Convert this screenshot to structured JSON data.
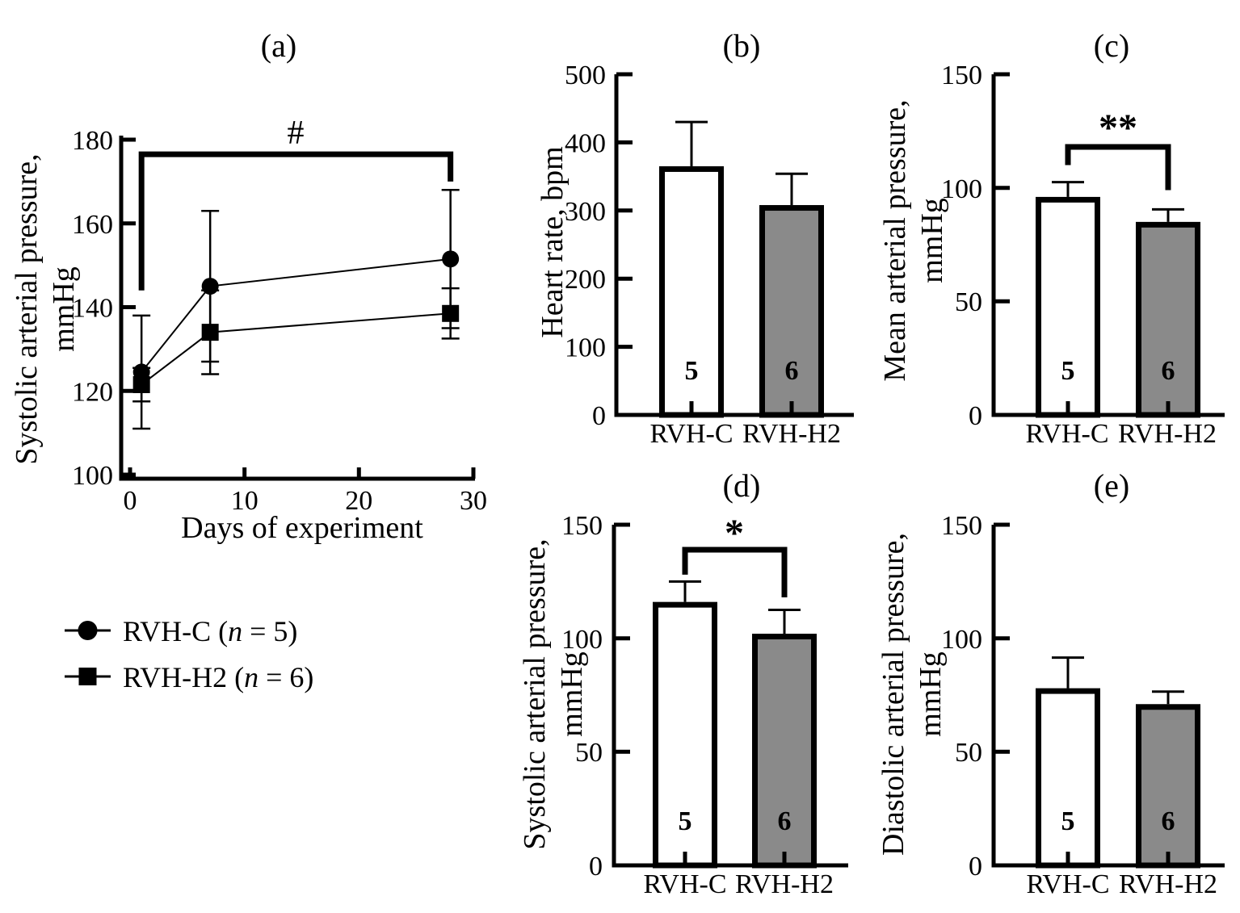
{
  "figure": {
    "background": "#ffffff",
    "panel_titles": [
      "(a)",
      "(b)",
      "(c)",
      "(d)",
      "(e)"
    ]
  },
  "colors": {
    "ink": "#000000",
    "gray_fill": "#8a8a8a",
    "white_fill": "#ffffff"
  },
  "legend": {
    "items": [
      {
        "marker": "circle-icon",
        "pre": "RVH-C (",
        "n": "n",
        "post": " = 5)"
      },
      {
        "marker": "square-icon",
        "pre": "RVH-H2 (",
        "n": "n",
        "post": " = 6)"
      }
    ]
  },
  "chart_data": [
    {
      "id": "a",
      "type": "line",
      "title": "(a)",
      "xlabel": "Days of experiment",
      "ylabel_lines": [
        "Systolic arterial pressure,",
        "mmHg"
      ],
      "xlim": [
        0,
        30
      ],
      "xticks": [
        0,
        10,
        20,
        30
      ],
      "ylim": [
        100,
        180
      ],
      "yticks": [
        100,
        120,
        140,
        160,
        180
      ],
      "grid": false,
      "legend_position": "below-left",
      "series": [
        {
          "name": "RVH-C",
          "n": 5,
          "marker": "circle",
          "x": [
            1,
            7,
            28
          ],
          "y": [
            124.5,
            145,
            151.5
          ],
          "err": [
            13.5,
            18,
            16.5
          ]
        },
        {
          "name": "RVH-H2",
          "n": 6,
          "marker": "square",
          "x": [
            1,
            7,
            28
          ],
          "y": [
            121.5,
            134,
            138.5
          ],
          "err": [
            4,
            10,
            6
          ]
        }
      ],
      "significance": {
        "symbol": "#",
        "from_day": 1,
        "to_day": 28,
        "bar_value": 176.5,
        "left_drop_to": 144,
        "right_drop_to": 170
      }
    },
    {
      "id": "b",
      "type": "bar",
      "title": "(b)",
      "ylabel_lines": [
        "Heart rate, bpm"
      ],
      "ylim": [
        0,
        500
      ],
      "yticks": [
        0,
        100,
        200,
        300,
        400,
        500
      ],
      "categories": [
        "RVH-C",
        "RVH-H2"
      ],
      "values": [
        365,
        308
      ],
      "errors": [
        65,
        46
      ],
      "bar_n": [
        "5",
        "6"
      ],
      "fills": [
        "#ffffff",
        "#8a8a8a"
      ]
    },
    {
      "id": "c",
      "type": "bar",
      "title": "(c)",
      "ylabel_lines": [
        "Mean arterial pressure,",
        "mmHg"
      ],
      "ylim": [
        0,
        150
      ],
      "yticks": [
        0,
        50,
        100,
        150
      ],
      "categories": [
        "RVH-C",
        "RVH-H2"
      ],
      "values": [
        96,
        85
      ],
      "errors": [
        6.5,
        5.5
      ],
      "bar_n": [
        "5",
        "6"
      ],
      "fills": [
        "#ffffff",
        "#8a8a8a"
      ],
      "significance": {
        "symbol": "**",
        "bar_value": 118,
        "left_drop_to": 110,
        "right_drop_to": 99
      }
    },
    {
      "id": "d",
      "type": "bar",
      "title": "(d)",
      "ylabel_lines": [
        "Systolic arterial pressure,",
        "mmHg"
      ],
      "ylim": [
        0,
        150
      ],
      "yticks": [
        0,
        50,
        100,
        150
      ],
      "categories": [
        "RVH-C",
        "RVH-H2"
      ],
      "values": [
        116,
        102
      ],
      "errors": [
        9,
        10.5
      ],
      "bar_n": [
        "5",
        "6"
      ],
      "fills": [
        "#ffffff",
        "#8a8a8a"
      ],
      "significance": {
        "symbol": "*",
        "bar_value": 139,
        "left_drop_to": 128,
        "right_drop_to": 118
      }
    },
    {
      "id": "e",
      "type": "bar",
      "title": "(e)",
      "ylabel_lines": [
        "Diastolic arterial pressure,",
        "mmHg"
      ],
      "ylim": [
        0,
        150
      ],
      "yticks": [
        0,
        50,
        100,
        150
      ],
      "categories": [
        "RVH-C",
        "RVH-H2"
      ],
      "values": [
        78,
        71
      ],
      "errors": [
        13.5,
        5.5
      ],
      "bar_n": [
        "5",
        "6"
      ],
      "fills": [
        "#ffffff",
        "#8a8a8a"
      ]
    }
  ]
}
